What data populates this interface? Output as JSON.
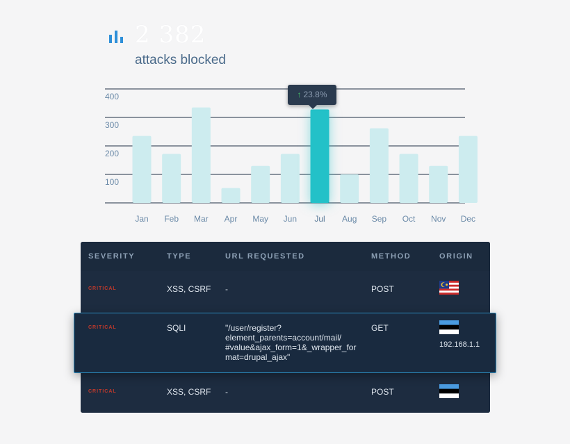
{
  "stat": {
    "value": "2 382",
    "label": "attacks blocked"
  },
  "tooltip": {
    "value": "23.8%",
    "icon": "arrow-up-icon"
  },
  "colors": {
    "bar": "#cdecef",
    "bar_active": "#23c1c8",
    "grid": "#1e2f44",
    "axis_text": "#6b8aa8",
    "critical": "#c0392b",
    "table_bg": "#1b2a3d",
    "highlight_border": "#2b8fc4"
  },
  "chart_data": {
    "type": "bar",
    "categories": [
      "Jan",
      "Feb",
      "Mar",
      "Apr",
      "May",
      "Jun",
      "Jul",
      "Aug",
      "Sep",
      "Oct",
      "Nov",
      "Dec"
    ],
    "values": [
      235,
      172,
      335,
      52,
      130,
      172,
      328,
      100,
      262,
      172,
      130,
      235
    ],
    "active_index": 6,
    "yticks": [
      100,
      200,
      300,
      400
    ],
    "ylim": [
      0,
      400
    ],
    "grid": true
  },
  "table": {
    "headers": [
      "SEVERITY",
      "TYPE",
      "URL REQUESTED",
      "METHOD",
      "ORIGIN"
    ],
    "rows": [
      {
        "severity": "CRITICAL",
        "type": "XSS, CSRF",
        "url": "-",
        "method": "POST",
        "origin_flag": "malaysia-flag-icon",
        "origin_ip": ""
      },
      {
        "severity": "CRITICAL",
        "type": "SQLI",
        "url": "\"/user/register? element_parents=account/mail/ #value&ajax_form=1&_wrapper_for mat=drupal_ajax\"",
        "method": "GET",
        "origin_flag": "estonia-flag-icon",
        "origin_ip": "192.168.1.1"
      },
      {
        "severity": "CRITICAL",
        "type": "XSS, CSRF",
        "url": "-",
        "method": "POST",
        "origin_flag": "estonia-flag-icon",
        "origin_ip": ""
      }
    ]
  }
}
